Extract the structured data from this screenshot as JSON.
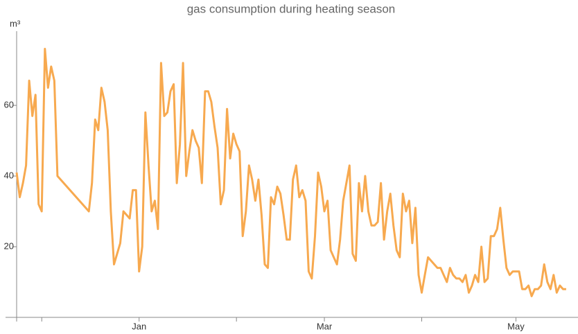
{
  "chart_data": {
    "type": "line",
    "title": "gas consumption during heating season",
    "ylabel": "m³",
    "x": [
      0,
      1,
      2,
      3,
      4,
      5,
      6,
      7,
      8,
      9,
      10,
      11,
      12,
      13,
      23,
      24,
      25,
      26,
      27,
      28,
      29,
      30,
      31,
      32,
      33,
      34,
      35,
      36,
      37,
      38,
      39,
      40,
      41,
      42,
      43,
      44,
      45,
      46,
      47,
      48,
      49,
      50,
      51,
      52,
      53,
      54,
      55,
      56,
      57,
      58,
      59,
      60,
      61,
      62,
      63,
      64,
      65,
      66,
      67,
      68,
      69,
      70,
      71,
      72,
      73,
      74,
      75,
      76,
      77,
      78,
      79,
      80,
      81,
      82,
      83,
      84,
      85,
      86,
      87,
      88,
      89,
      90,
      91,
      92,
      93,
      94,
      95,
      96,
      97,
      98,
      99,
      100,
      101,
      102,
      103,
      104,
      105,
      106,
      107,
      108,
      109,
      110,
      111,
      112,
      113,
      114,
      115,
      116,
      117,
      118,
      119,
      120,
      121,
      122,
      123,
      124,
      125,
      126,
      127,
      128,
      129,
      130,
      131,
      132,
      133,
      134,
      135,
      136,
      137,
      138,
      139,
      140,
      141,
      142,
      143,
      144,
      145,
      146,
      147,
      148,
      149,
      150,
      151,
      152,
      153,
      154,
      155,
      156,
      157,
      158,
      159,
      160,
      161,
      162,
      163,
      164,
      165,
      166,
      167,
      168,
      169,
      170,
      171,
      172,
      173,
      174,
      175
    ],
    "series": [
      {
        "name": "gas consumption",
        "color": "#f7a94f",
        "values": [
          41,
          34,
          38,
          43,
          67,
          57,
          63,
          32,
          30,
          76,
          65,
          71,
          67,
          40,
          30,
          38,
          56,
          53,
          65,
          61,
          53,
          30,
          15,
          18,
          21,
          30,
          29,
          28,
          36,
          36,
          13,
          20,
          58,
          43,
          30,
          33,
          25,
          72,
          57,
          58,
          64,
          66,
          38,
          49,
          72,
          40,
          47,
          53,
          50,
          48,
          38,
          64,
          64,
          61,
          54,
          48,
          32,
          36,
          59,
          45,
          52,
          49,
          47,
          23,
          30,
          43,
          39,
          33,
          39,
          29,
          15,
          14,
          34,
          32,
          37,
          35,
          29,
          22,
          22,
          39,
          43,
          34,
          36,
          33,
          13,
          11,
          23,
          41,
          37,
          30,
          33,
          19,
          17,
          15,
          22,
          33,
          38,
          43,
          18,
          16,
          38,
          30,
          40,
          30,
          26,
          26,
          27,
          38,
          22,
          30,
          35,
          26,
          19,
          17,
          35,
          30,
          33,
          21,
          31,
          12,
          7,
          12,
          17,
          16,
          15,
          14,
          14,
          12,
          10,
          14,
          12,
          11,
          11,
          10,
          12,
          7,
          9,
          12,
          10,
          20,
          10,
          11,
          23,
          23,
          25,
          31,
          22,
          14,
          12,
          13,
          13,
          13,
          8,
          8,
          9,
          6,
          8,
          8,
          9,
          15,
          10,
          8,
          12,
          7,
          9,
          8,
          8
        ]
      }
    ],
    "xlim": [
      0,
      177
    ],
    "xticks": [
      {
        "value": 39,
        "label": "Jan"
      },
      {
        "value": 98,
        "label": "Mar"
      },
      {
        "value": 159,
        "label": "May"
      }
    ],
    "xminorticks": [
      8,
      70,
      129
    ],
    "ylim": [
      0,
      81
    ],
    "yticks": [
      20,
      40,
      60
    ],
    "grid": false
  }
}
